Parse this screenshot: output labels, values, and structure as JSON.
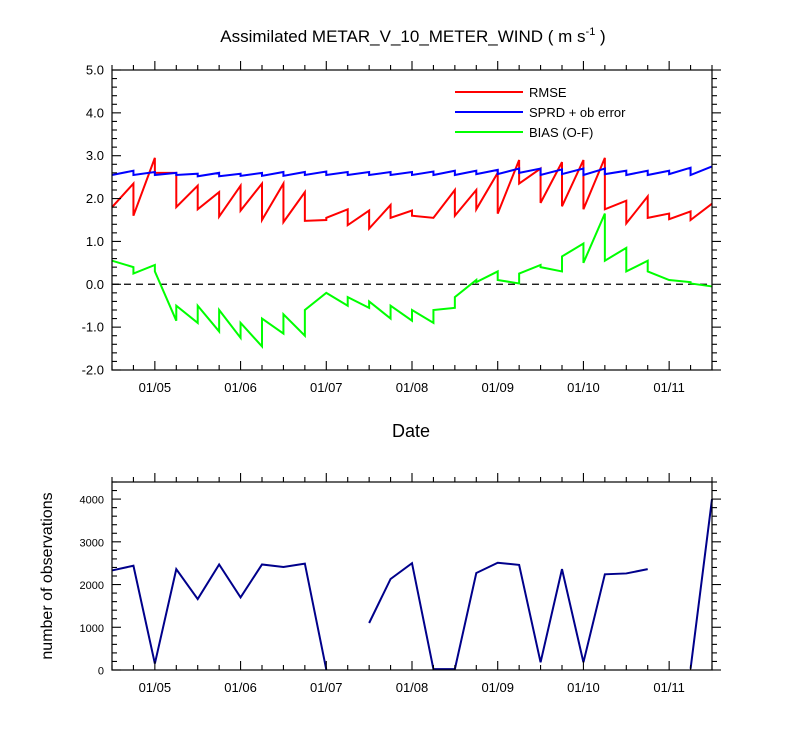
{
  "colors": {
    "rmse": "#ff0000",
    "sprd": "#0000ff",
    "bias": "#00ff00",
    "nobs": "#00008b",
    "axis": "#000000",
    "zero": "#000000"
  },
  "chart_data": [
    {
      "type": "line",
      "title": "Assimilated METAR_V_10_METER_WIND ( m s",
      "title_sup": "-1",
      "title_end": " )",
      "xlabel": "Date",
      "ylabel": "",
      "xlim": [
        0,
        7
      ],
      "ylim": [
        -2,
        5
      ],
      "x_ticks": [
        0.5,
        1.5,
        2.5,
        3.5,
        4.5,
        5.5,
        6.5
      ],
      "x_tick_labels": [
        "01/05",
        "01/06",
        "01/07",
        "01/08",
        "01/09",
        "01/10",
        "01/11"
      ],
      "y_ticks": [
        -2,
        -1,
        0,
        1,
        2,
        3,
        4,
        5
      ],
      "y_tick_labels": [
        "-2.0",
        "-1.0",
        "0.0",
        "1.0",
        "2.0",
        "3.0",
        "4.0",
        "5.0"
      ],
      "zero_line": true,
      "legend": {
        "position": "top-right",
        "entries": [
          "RMSE",
          "SPRD + ob error",
          "BIAS (O-F)"
        ]
      },
      "series": [
        {
          "name": "RMSE",
          "x": [
            0,
            0.25,
            0.25,
            0.5,
            0.5,
            0.75,
            0.75,
            1.0,
            1.0,
            1.25,
            1.25,
            1.5,
            1.5,
            1.75,
            1.75,
            2.0,
            2.0,
            2.25,
            2.25,
            2.5,
            2.5,
            2.75,
            2.75,
            3.0,
            3.0,
            3.25,
            3.25,
            3.5,
            3.5,
            3.75,
            3.75,
            4.0,
            4.0,
            4.25,
            4.25,
            4.5,
            4.5,
            4.75,
            4.75,
            5.0,
            5.0,
            5.25,
            5.25,
            5.5,
            5.5,
            5.75,
            5.75,
            6.0,
            6.0,
            6.25,
            6.25,
            6.5,
            6.5,
            6.75,
            6.75,
            7.0
          ],
          "values": [
            1.8,
            2.35,
            1.6,
            2.95,
            2.6,
            2.6,
            1.8,
            2.3,
            1.75,
            2.15,
            1.58,
            2.3,
            1.72,
            2.35,
            1.5,
            2.35,
            1.45,
            2.15,
            1.48,
            1.5,
            1.55,
            1.75,
            1.38,
            1.72,
            1.3,
            1.85,
            1.55,
            1.72,
            1.6,
            1.55,
            1.55,
            2.2,
            1.6,
            2.2,
            1.75,
            2.6,
            1.65,
            2.9,
            2.35,
            2.7,
            1.9,
            2.85,
            1.82,
            2.9,
            1.75,
            2.95,
            1.75,
            1.95,
            1.42,
            2.05,
            1.55,
            1.65,
            1.52,
            1.7,
            1.5,
            1.88
          ]
        },
        {
          "name": "SPRD + ob error",
          "x": [
            0,
            0.25,
            0.25,
            0.5,
            0.5,
            0.75,
            0.75,
            1.0,
            1.0,
            1.25,
            1.25,
            1.5,
            1.5,
            1.75,
            1.75,
            2.0,
            2.0,
            2.25,
            2.25,
            2.5,
            2.5,
            2.75,
            2.75,
            3.0,
            3.0,
            3.25,
            3.25,
            3.5,
            3.5,
            3.75,
            3.75,
            4.0,
            4.0,
            4.25,
            4.25,
            4.5,
            4.5,
            4.75,
            4.75,
            5.0,
            5.0,
            5.25,
            5.25,
            5.5,
            5.5,
            5.75,
            5.75,
            6.0,
            6.0,
            6.25,
            6.25,
            6.5,
            6.5,
            6.75,
            6.75,
            7.0
          ],
          "values": [
            2.55,
            2.65,
            2.55,
            2.62,
            2.55,
            2.6,
            2.55,
            2.58,
            2.52,
            2.6,
            2.52,
            2.58,
            2.53,
            2.6,
            2.53,
            2.62,
            2.53,
            2.62,
            2.55,
            2.63,
            2.55,
            2.62,
            2.55,
            2.62,
            2.55,
            2.62,
            2.55,
            2.62,
            2.55,
            2.63,
            2.55,
            2.65,
            2.55,
            2.65,
            2.57,
            2.67,
            2.57,
            2.7,
            2.6,
            2.7,
            2.55,
            2.68,
            2.57,
            2.7,
            2.55,
            2.7,
            2.57,
            2.65,
            2.55,
            2.65,
            2.55,
            2.65,
            2.57,
            2.72,
            2.55,
            2.75
          ]
        },
        {
          "name": "BIAS (O-F)",
          "x": [
            0,
            0.25,
            0.25,
            0.5,
            0.5,
            0.75,
            0.75,
            1.0,
            1.0,
            1.25,
            1.25,
            1.5,
            1.5,
            1.75,
            1.75,
            2.0,
            2.0,
            2.25,
            2.25,
            2.5,
            2.5,
            2.75,
            2.75,
            3.0,
            3.0,
            3.25,
            3.25,
            3.5,
            3.5,
            3.75,
            3.75,
            4.0,
            4.0,
            4.25,
            4.25,
            4.5,
            4.5,
            4.75,
            4.75,
            5.0,
            5.0,
            5.25,
            5.25,
            5.5,
            5.5,
            5.75,
            5.75,
            6.0,
            6.0,
            6.25,
            6.25,
            6.5,
            6.5,
            6.75,
            6.75,
            7.0
          ],
          "values": [
            0.55,
            0.4,
            0.25,
            0.45,
            0.3,
            -0.85,
            -0.5,
            -0.9,
            -0.5,
            -1.1,
            -0.6,
            -1.25,
            -0.9,
            -1.45,
            -0.8,
            -1.15,
            -0.7,
            -1.2,
            -0.6,
            -0.2,
            -0.2,
            -0.5,
            -0.3,
            -0.55,
            -0.4,
            -0.8,
            -0.5,
            -0.85,
            -0.6,
            -0.9,
            -0.6,
            -0.55,
            -0.3,
            0.1,
            0.05,
            0.3,
            0.1,
            0.02,
            0.25,
            0.45,
            0.4,
            0.3,
            0.65,
            0.95,
            0.5,
            1.65,
            0.55,
            0.85,
            0.3,
            0.55,
            0.3,
            0.1,
            0.1,
            0.05,
            0.02,
            -0.05
          ]
        }
      ]
    },
    {
      "type": "line",
      "title": "",
      "xlabel": "",
      "ylabel": "number of observations",
      "xlim": [
        0,
        7
      ],
      "ylim": [
        0,
        4400
      ],
      "x_ticks": [
        0.5,
        1.5,
        2.5,
        3.5,
        4.5,
        5.5,
        6.5
      ],
      "x_tick_labels": [
        "01/05",
        "01/06",
        "01/07",
        "01/08",
        "01/09",
        "01/10",
        "01/11"
      ],
      "y_ticks": [
        0,
        1000,
        2000,
        3000,
        4000
      ],
      "y_tick_labels": [
        "0",
        "1000",
        "2000",
        "3000",
        "4000"
      ],
      "series": [
        {
          "name": "number of observations",
          "x": [
            0,
            0.25,
            0.5,
            0.75,
            1.0,
            1.25,
            1.5,
            1.75,
            2.0,
            2.25,
            2.5,
            2.75,
            3.0,
            3.25,
            3.5,
            3.75,
            4.0,
            4.25,
            4.5,
            4.75,
            5.0,
            5.25,
            5.5,
            5.75,
            6.0,
            6.25,
            6.5,
            6.75,
            7.0
          ],
          "values": [
            2330,
            2440,
            150,
            2360,
            1660,
            2470,
            1700,
            2470,
            2410,
            2490,
            10,
            null,
            1100,
            2130,
            2500,
            20,
            20,
            2270,
            2510,
            2460,
            180,
            2360,
            180,
            2240,
            2260,
            2360,
            null,
            30,
            4000
          ]
        }
      ]
    }
  ]
}
